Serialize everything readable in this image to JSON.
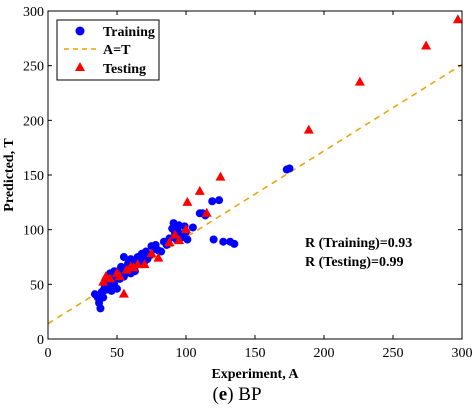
{
  "chart_data": {
    "type": "scatter",
    "xlabel": "Experiment, A",
    "ylabel": "Predicted, T",
    "xlim": [
      0,
      300
    ],
    "ylim": [
      0,
      300
    ],
    "xticks": [
      0,
      50,
      100,
      150,
      200,
      250,
      300
    ],
    "yticks": [
      0,
      50,
      100,
      150,
      200,
      250,
      300
    ],
    "grid": false,
    "legend_position": "top-left",
    "series": [
      {
        "name": "Training",
        "marker": "circle",
        "color": "#0000ff",
        "points": [
          [
            34,
            41
          ],
          [
            36,
            38
          ],
          [
            37,
            33
          ],
          [
            38,
            28
          ],
          [
            39,
            43
          ],
          [
            40,
            44
          ],
          [
            40,
            38
          ],
          [
            41,
            47
          ],
          [
            42,
            52
          ],
          [
            42,
            45
          ],
          [
            43,
            56
          ],
          [
            44,
            48
          ],
          [
            45,
            60
          ],
          [
            46,
            54
          ],
          [
            46,
            44
          ],
          [
            47,
            57
          ],
          [
            48,
            50
          ],
          [
            48,
            62
          ],
          [
            49,
            59
          ],
          [
            50,
            56
          ],
          [
            50,
            46
          ],
          [
            51,
            61
          ],
          [
            52,
            63
          ],
          [
            52,
            55
          ],
          [
            53,
            66
          ],
          [
            54,
            60
          ],
          [
            55,
            57
          ],
          [
            55,
            75
          ],
          [
            56,
            64
          ],
          [
            57,
            62
          ],
          [
            58,
            69
          ],
          [
            59,
            67
          ],
          [
            60,
            73
          ],
          [
            60,
            60
          ],
          [
            61,
            65
          ],
          [
            62,
            70
          ],
          [
            63,
            62
          ],
          [
            64,
            68
          ],
          [
            65,
            75
          ],
          [
            66,
            72
          ],
          [
            67,
            70
          ],
          [
            68,
            78
          ],
          [
            69,
            74
          ],
          [
            70,
            71
          ],
          [
            71,
            80
          ],
          [
            72,
            73
          ],
          [
            74,
            77
          ],
          [
            75,
            85
          ],
          [
            77,
            82
          ],
          [
            78,
            86
          ],
          [
            80,
            81
          ],
          [
            82,
            80
          ],
          [
            84,
            89
          ],
          [
            86,
            86
          ],
          [
            88,
            92
          ],
          [
            90,
            101
          ],
          [
            91,
            106
          ],
          [
            92,
            97
          ],
          [
            93,
            91
          ],
          [
            94,
            99
          ],
          [
            95,
            104
          ],
          [
            96,
            96
          ],
          [
            97,
            93
          ],
          [
            99,
            103
          ],
          [
            100,
            98
          ],
          [
            101,
            91
          ],
          [
            105,
            102
          ],
          [
            110,
            115
          ],
          [
            112,
            115
          ],
          [
            114,
            113
          ],
          [
            119,
            126
          ],
          [
            120,
            91
          ],
          [
            124,
            127
          ],
          [
            127,
            89
          ],
          [
            132,
            89
          ],
          [
            135,
            87
          ],
          [
            173,
            155
          ],
          [
            175,
            156
          ]
        ]
      },
      {
        "name": "A=T",
        "line": true,
        "color": "#f0a000",
        "slope": 0.79,
        "intercept": 14
      },
      {
        "name": "Testing",
        "marker": "triangle",
        "color": "#ff0000",
        "points": [
          [
            40,
            52
          ],
          [
            42,
            57
          ],
          [
            45,
            55
          ],
          [
            50,
            60
          ],
          [
            52,
            57
          ],
          [
            55,
            41
          ],
          [
            57,
            63
          ],
          [
            60,
            66
          ],
          [
            62,
            65
          ],
          [
            65,
            68
          ],
          [
            70,
            68
          ],
          [
            75,
            78
          ],
          [
            80,
            74
          ],
          [
            88,
            88
          ],
          [
            92,
            95
          ],
          [
            95,
            90
          ],
          [
            100,
            100
          ],
          [
            101,
            125
          ],
          [
            110,
            135
          ],
          [
            115,
            115
          ],
          [
            125,
            148
          ],
          [
            189,
            191
          ],
          [
            226,
            235
          ],
          [
            274,
            268
          ],
          [
            297,
            292
          ]
        ]
      }
    ],
    "annotations": [
      "R (Training)=0.93",
      "R (Testing)=0.99"
    ]
  },
  "caption": {
    "label": "e",
    "text": "BP"
  }
}
